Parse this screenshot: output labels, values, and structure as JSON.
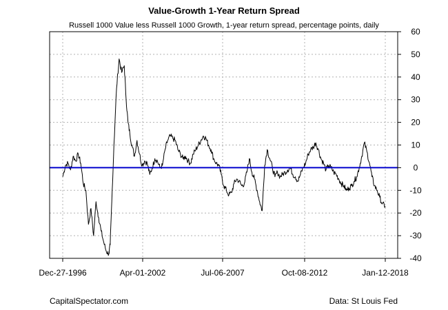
{
  "chart_data": {
    "type": "line",
    "title": "Value-Growth 1-Year Return Spread",
    "subtitle": "Russell 1000 Value less Russell 1000 Growth, 1-year return spread, percentage points, daily",
    "xlabel": "",
    "ylabel": "",
    "x_tick_labels": [
      "Dec-27-1996",
      "Apr-01-2002",
      "Jul-06-2007",
      "Oct-08-2012",
      "Jan-12-2018"
    ],
    "y_ticks": [
      -40,
      -30,
      -20,
      -10,
      0,
      10,
      20,
      30,
      40,
      50,
      60
    ],
    "ylim": [
      -40,
      60
    ],
    "grid": true,
    "reference_line": {
      "y": 0,
      "color": "#0000cc"
    },
    "series": [
      {
        "color": "#000000",
        "x": [
          "1996-12-27",
          "1997-03-01",
          "1997-05-01",
          "1997-07-01",
          "1997-09-01",
          "1997-11-01",
          "1998-01-01",
          "1998-03-01",
          "1998-05-01",
          "1998-07-01",
          "1998-09-01",
          "1998-11-01",
          "1999-01-01",
          "1999-03-01",
          "1999-05-01",
          "1999-07-01",
          "1999-09-01",
          "1999-11-01",
          "2000-01-01",
          "2000-02-01",
          "2000-03-10",
          "2000-05-01",
          "2000-07-01",
          "2000-09-01",
          "2000-11-01",
          "2001-01-01",
          "2001-02-15",
          "2001-04-01",
          "2001-05-15",
          "2001-07-01",
          "2001-09-01",
          "2001-11-01",
          "2002-01-01",
          "2002-03-01",
          "2002-05-01",
          "2002-07-01",
          "2002-09-01",
          "2002-11-01",
          "2003-01-01",
          "2003-03-01",
          "2003-05-01",
          "2003-07-01",
          "2003-09-01",
          "2003-11-01",
          "2004-01-01",
          "2004-03-01",
          "2004-05-01",
          "2004-07-01",
          "2004-09-01",
          "2004-11-01",
          "2005-01-01",
          "2005-03-01",
          "2005-05-01",
          "2005-07-01",
          "2005-09-01",
          "2005-11-01",
          "2006-01-01",
          "2006-03-01",
          "2006-05-01",
          "2006-07-01",
          "2006-09-01",
          "2006-11-01",
          "2007-01-01",
          "2007-03-01",
          "2007-05-01",
          "2007-07-01",
          "2007-09-01",
          "2007-11-01",
          "2008-01-01",
          "2008-03-01",
          "2008-05-01",
          "2008-07-01",
          "2008-09-01",
          "2008-11-01",
          "2009-01-01",
          "2009-03-01",
          "2009-05-01",
          "2009-07-01",
          "2009-09-01",
          "2009-11-01",
          "2010-01-01",
          "2010-03-01",
          "2010-05-01",
          "2010-07-01",
          "2010-09-01",
          "2010-11-01",
          "2011-01-01",
          "2011-03-01",
          "2011-05-01",
          "2011-07-01",
          "2011-09-01",
          "2011-11-01",
          "2012-01-01",
          "2012-03-01",
          "2012-05-01",
          "2012-07-01",
          "2012-09-01",
          "2012-11-01",
          "2013-01-01",
          "2013-03-01",
          "2013-05-01",
          "2013-07-01",
          "2013-09-01",
          "2013-11-01",
          "2014-01-01",
          "2014-03-01",
          "2014-05-01",
          "2014-07-01",
          "2014-09-01",
          "2014-11-01",
          "2015-01-01",
          "2015-03-01",
          "2015-05-01",
          "2015-07-01",
          "2015-09-01",
          "2015-11-01",
          "2016-01-01",
          "2016-03-01",
          "2016-05-01",
          "2016-07-01",
          "2016-09-01",
          "2016-11-01",
          "2017-01-01",
          "2017-03-01",
          "2017-05-01",
          "2017-07-01",
          "2017-09-01",
          "2017-11-01",
          "2018-01-12"
        ],
        "y": [
          -4,
          1,
          2,
          -1,
          5,
          3,
          6,
          2,
          -7,
          -10,
          -25,
          -18,
          -30,
          -15,
          -22,
          -28,
          -33,
          -37,
          -38,
          -34,
          -15,
          10,
          35,
          48,
          42,
          45,
          30,
          20,
          15,
          10,
          5,
          12,
          6,
          1,
          3,
          2,
          -3,
          0,
          4,
          3,
          0,
          1,
          8,
          12,
          14,
          13,
          12,
          8,
          6,
          4,
          5,
          3,
          2,
          6,
          8,
          10,
          12,
          14,
          13,
          10,
          8,
          4,
          2,
          1,
          -3,
          -8,
          -10,
          -12,
          -11,
          -7,
          -5,
          -6,
          -8,
          -7,
          -2,
          4,
          -2,
          -5,
          -10,
          -15,
          -19,
          1,
          8,
          4,
          0,
          -4,
          -2,
          -4,
          -3,
          -2,
          -1,
          0,
          -3,
          -4,
          -6,
          -3,
          0,
          2,
          6,
          8,
          9,
          11,
          8,
          4,
          2,
          -1,
          1,
          0,
          -2,
          -3,
          -5,
          -7,
          -8,
          -10,
          -9,
          -8,
          -6,
          -4,
          0,
          5,
          11,
          7,
          2,
          -4,
          -8,
          -10,
          -13,
          -16,
          -17
        ]
      }
    ]
  },
  "footer": {
    "left": "CapitalSpectator.com",
    "right": "Data: St Louis Fed"
  }
}
